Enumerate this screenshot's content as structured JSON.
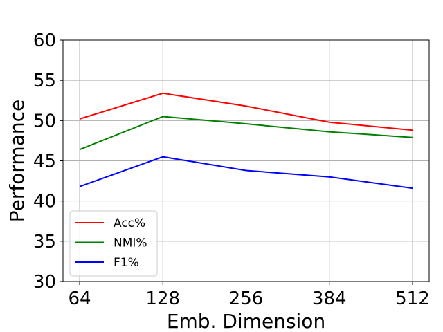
{
  "chart_data": {
    "type": "line",
    "title": "",
    "xlabel": "Emb. Dimension",
    "ylabel": "Performance",
    "categories": [
      "64",
      "128",
      "256",
      "384",
      "512"
    ],
    "ylim": [
      30,
      60
    ],
    "yticks": [
      "30",
      "35",
      "40",
      "45",
      "50",
      "55",
      "60"
    ],
    "grid": true,
    "legend_position": "lower-left",
    "series": [
      {
        "name": "Acc%",
        "color": "#ff0000",
        "values": [
          50.2,
          53.4,
          51.8,
          49.8,
          48.8
        ]
      },
      {
        "name": "NMI%",
        "color": "#008000",
        "values": [
          46.4,
          50.5,
          49.6,
          48.6,
          47.9
        ]
      },
      {
        "name": "F1%",
        "color": "#0000ff",
        "values": [
          41.8,
          45.5,
          43.8,
          43.0,
          41.6
        ]
      }
    ]
  }
}
